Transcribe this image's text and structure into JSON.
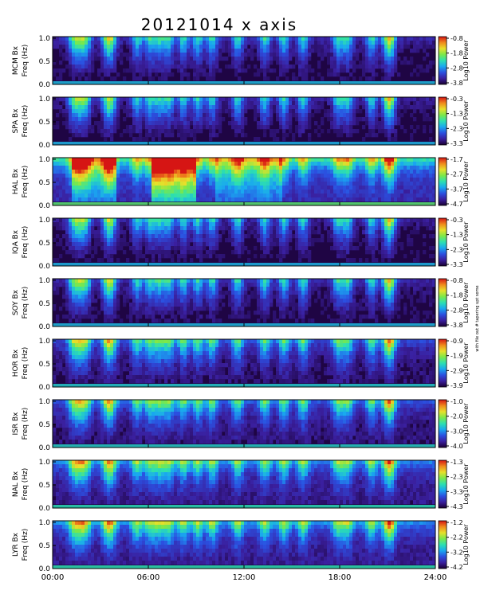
{
  "figure": {
    "title": "20121014  x axis",
    "note": "with file out # tapering upt some"
  },
  "chart_data": {
    "type": "heatmap",
    "title": "20121014  x axis",
    "x_ticks": [
      "00:00",
      "06:00",
      "12:00",
      "18:00",
      "24:00"
    ],
    "xlim": [
      0,
      24
    ],
    "y_ticks": [
      "0.0",
      "0.5",
      "1.0"
    ],
    "ylim": [
      0,
      1.0
    ],
    "colorbar_label": "Log10 Power",
    "colormap": [
      "#1a0033",
      "#3a1f9e",
      "#2b4fe0",
      "#19a8f0",
      "#2de0b0",
      "#7be84a",
      "#e8e02a",
      "#f08a1c",
      "#d61414"
    ],
    "panels": [
      {
        "station_label": "MCM Bx",
        "ylabel": "Freq (Hz)",
        "cb_ticks": [
          "-0.8",
          "-1.8",
          "-2.8",
          "-3.8"
        ],
        "base_level": 0.12
      },
      {
        "station_label": "SPA Bx",
        "ylabel": "Freq (Hz)",
        "cb_ticks": [
          "-0.3",
          "-1.3",
          "-2.3",
          "-3.3"
        ],
        "base_level": 0.1
      },
      {
        "station_label": "HAL Bx",
        "ylabel": "Freq (Hz)",
        "cb_ticks": [
          "-1.7",
          "-2.7",
          "-3.7",
          "-4.7"
        ],
        "base_level": 0.45
      },
      {
        "station_label": "IQA Bx",
        "ylabel": "Freq (Hz)",
        "cb_ticks": [
          "-0.3",
          "-1.3",
          "-2.3",
          "-3.3"
        ],
        "base_level": 0.1
      },
      {
        "station_label": "SOY Bx",
        "ylabel": "Freq (Hz)",
        "cb_ticks": [
          "-0.8",
          "-1.8",
          "-2.8",
          "-3.8"
        ],
        "base_level": 0.12
      },
      {
        "station_label": "HOR Bx",
        "ylabel": "Freq (Hz)",
        "cb_ticks": [
          "-0.9",
          "-1.9",
          "-2.9",
          "-3.9"
        ],
        "base_level": 0.2
      },
      {
        "station_label": "ISR Bx",
        "ylabel": "Freq (Hz)",
        "cb_ticks": [
          "-1.0",
          "-2.0",
          "-3.0",
          "-4.0"
        ],
        "base_level": 0.22
      },
      {
        "station_label": "NAL Bx",
        "ylabel": "Freq (Hz)",
        "cb_ticks": [
          "-1.3",
          "-2.3",
          "-3.3",
          "-4.3"
        ],
        "base_level": 0.28
      },
      {
        "station_label": "LYR Bx",
        "ylabel": "Freq (Hz)",
        "cb_ticks": [
          "-1.2",
          "-2.2",
          "-3.2",
          "-4.2"
        ],
        "base_level": 0.3
      }
    ]
  }
}
